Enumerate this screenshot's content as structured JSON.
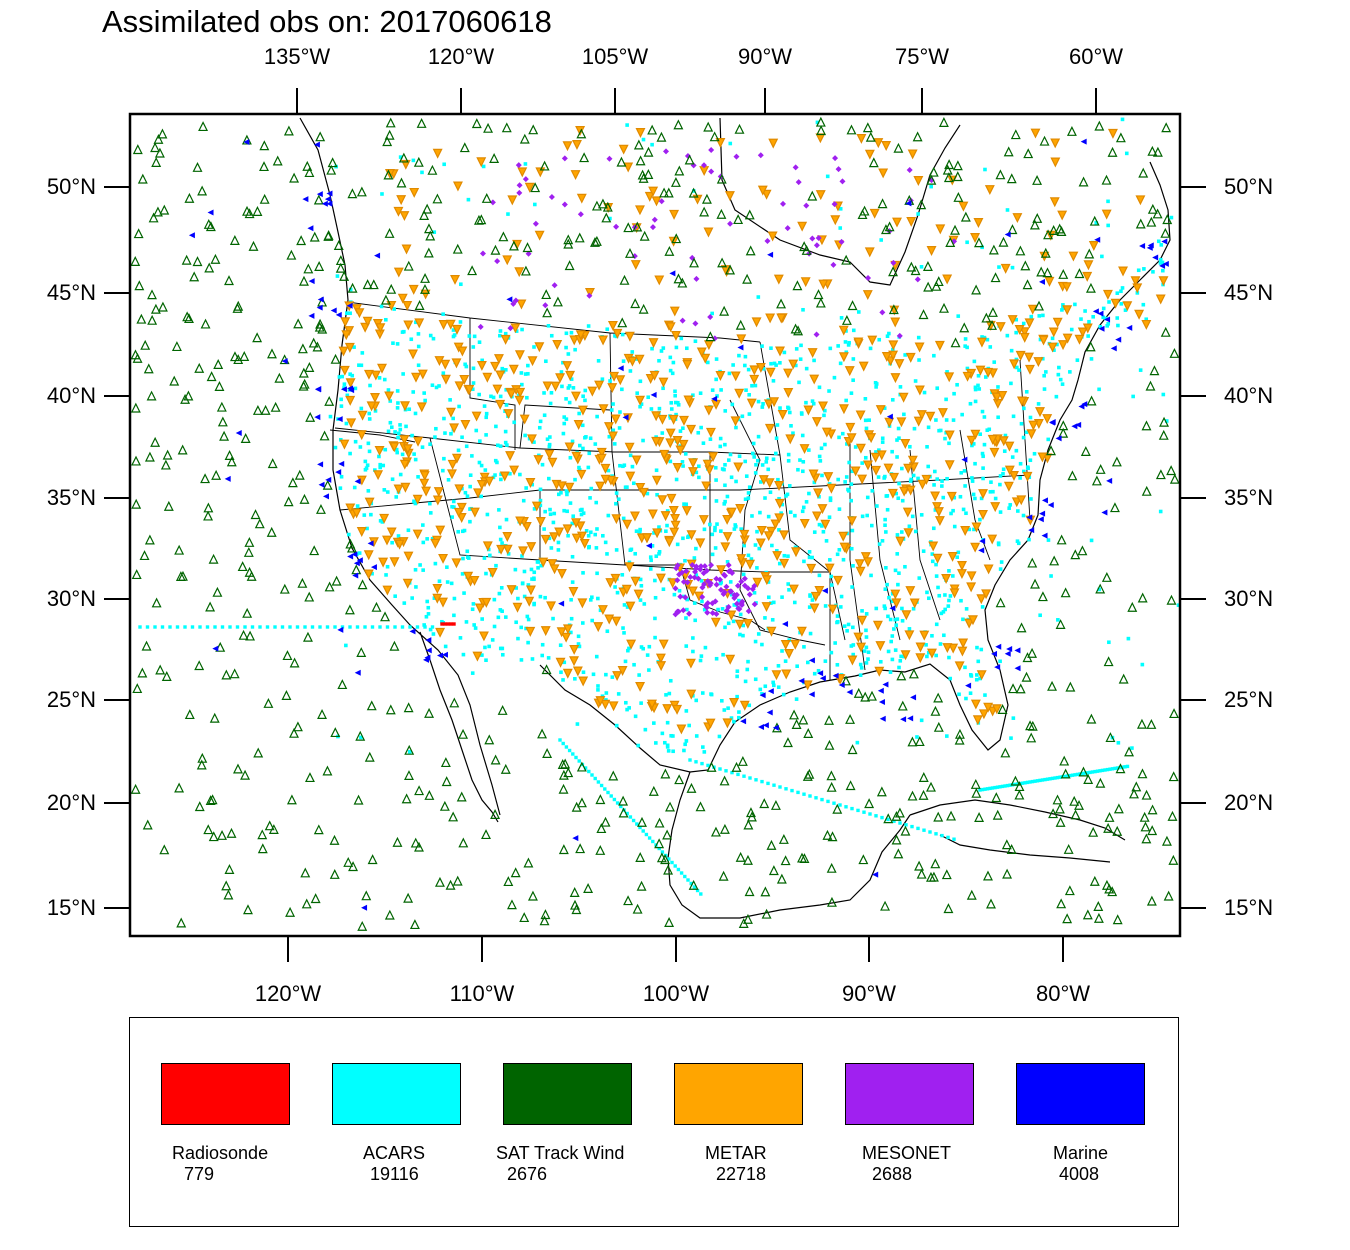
{
  "title": "Assimilated obs on: 2017060618",
  "axes": {
    "top_lon_labels": [
      "135°W",
      "120°W",
      "105°W",
      "90°W",
      "75°W",
      "60°W"
    ],
    "bottom_lon_labels": [
      "120°W",
      "110°W",
      "100°W",
      "90°W",
      "80°W"
    ],
    "lat_labels": [
      "50°N",
      "45°N",
      "40°N",
      "35°N",
      "30°N",
      "25°N",
      "20°N",
      "15°N"
    ]
  },
  "legend": {
    "items": [
      {
        "label": "Radiosonde",
        "count": "779",
        "color": "#ff0000"
      },
      {
        "label": "ACARS",
        "count": "19116",
        "color": "#00ffff"
      },
      {
        "label": "SAT Track Wind",
        "count": "2676",
        "color": "#006400"
      },
      {
        "label": "METAR",
        "count": "22718",
        "color": "#ffa500"
      },
      {
        "label": "MESONET",
        "count": "2688",
        "color": "#a020f0"
      },
      {
        "label": "Marine",
        "count": "4008",
        "color": "#0000ff"
      }
    ]
  },
  "colors": {
    "radiosonde": "#ff0000",
    "acars": "#00ffff",
    "sat_track_wind": "#006400",
    "metar": "#ffa500",
    "mesonet": "#a020f0",
    "marine": "#0000ff"
  }
}
